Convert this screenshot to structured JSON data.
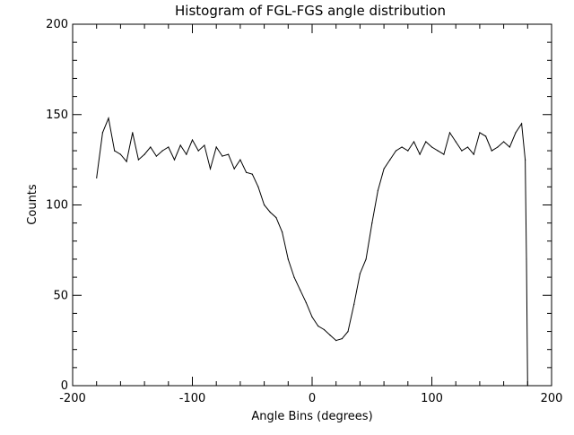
{
  "chart_data": {
    "type": "line",
    "title": "Histogram of FGL-FGS angle distribution",
    "xlabel": "Angle Bins (degrees)",
    "ylabel": "Counts",
    "xlim": [
      -200,
      200
    ],
    "ylim": [
      0,
      200
    ],
    "xticks": [
      {
        "value": -200,
        "label": "-200"
      },
      {
        "value": -100,
        "label": "-100"
      },
      {
        "value": 0,
        "label": "0"
      },
      {
        "value": 100,
        "label": "100"
      },
      {
        "value": 200,
        "label": "200"
      }
    ],
    "yticks": [
      {
        "value": 0,
        "label": "0"
      },
      {
        "value": 50,
        "label": "50"
      },
      {
        "value": 100,
        "label": "100"
      },
      {
        "value": 150,
        "label": "150"
      },
      {
        "value": 200,
        "label": "200"
      }
    ],
    "grid": false,
    "line_color": "#000000",
    "series": [
      {
        "name": "counts",
        "x": [
          -180,
          -175,
          -170,
          -165,
          -160,
          -155,
          -150,
          -145,
          -140,
          -135,
          -130,
          -125,
          -120,
          -115,
          -110,
          -105,
          -100,
          -95,
          -90,
          -85,
          -80,
          -75,
          -70,
          -65,
          -60,
          -55,
          -50,
          -45,
          -40,
          -35,
          -30,
          -25,
          -20,
          -15,
          -10,
          -5,
          0,
          5,
          10,
          15,
          20,
          25,
          30,
          35,
          40,
          45,
          50,
          55,
          60,
          65,
          70,
          75,
          80,
          85,
          90,
          95,
          100,
          105,
          110,
          115,
          120,
          125,
          130,
          135,
          140,
          145,
          150,
          155,
          160,
          165,
          170,
          175,
          178,
          179,
          180
        ],
        "values": [
          115,
          140,
          148,
          130,
          128,
          124,
          140,
          125,
          128,
          132,
          127,
          130,
          132,
          125,
          133,
          128,
          136,
          130,
          133,
          120,
          132,
          127,
          128,
          120,
          125,
          118,
          117,
          110,
          100,
          96,
          93,
          85,
          70,
          60,
          53,
          46,
          38,
          33,
          31,
          28,
          25,
          26,
          30,
          45,
          62,
          70,
          90,
          108,
          120,
          125,
          130,
          132,
          130,
          135,
          128,
          135,
          132,
          130,
          128,
          140,
          135,
          130,
          132,
          128,
          140,
          138,
          130,
          132,
          135,
          132,
          140,
          145,
          125,
          70,
          0
        ]
      }
    ]
  }
}
